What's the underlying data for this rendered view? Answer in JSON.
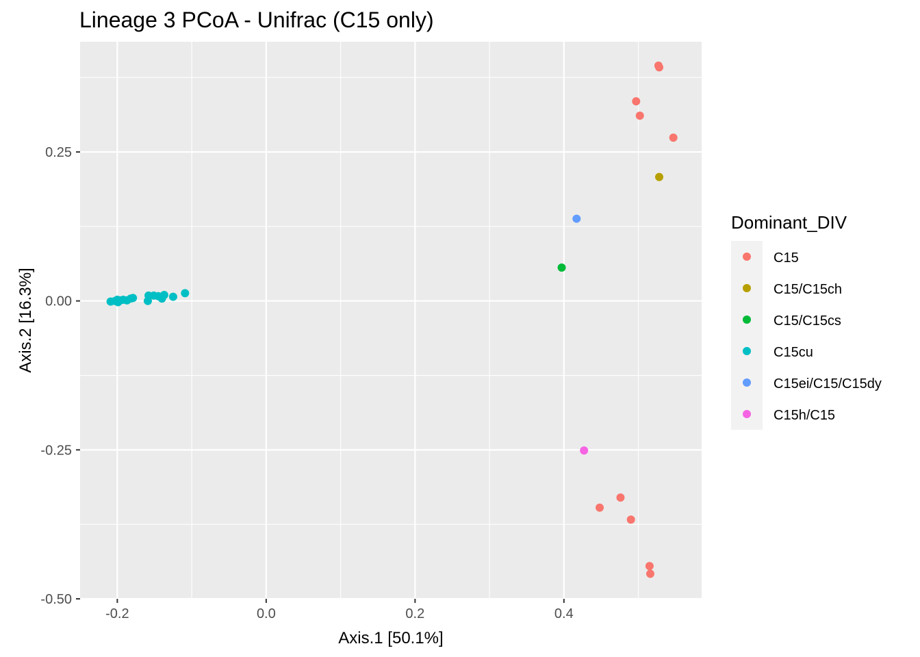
{
  "chart_data": {
    "type": "scatter",
    "title": "Lineage 3 PCoA - Unifrac (C15 only)",
    "xlabel": "Axis.1   [50.1%]",
    "ylabel": "Axis.2   [16.3%]",
    "xlim": [
      -0.25,
      0.585
    ],
    "ylim": [
      -0.5,
      0.435
    ],
    "x_ticks": [
      -0.2,
      0.0,
      0.2,
      0.4
    ],
    "x_tick_labels": [
      "-0.2",
      "0.0",
      "0.2",
      "0.4"
    ],
    "y_ticks": [
      -0.5,
      -0.25,
      0.0,
      0.25
    ],
    "y_tick_labels": [
      "-0.50",
      "-0.25",
      "0.00",
      "0.25"
    ],
    "grid": true,
    "legend_title": "Dominant_DIV",
    "legend_position": "right",
    "series": [
      {
        "name": "C15",
        "color": "#F8766D",
        "points": [
          [
            0.527,
            0.395
          ],
          [
            0.528,
            0.392
          ],
          [
            0.497,
            0.335
          ],
          [
            0.502,
            0.311
          ],
          [
            0.547,
            0.274
          ],
          [
            0.476,
            -0.33
          ],
          [
            0.448,
            -0.347
          ],
          [
            0.49,
            -0.367
          ],
          [
            0.515,
            -0.445
          ],
          [
            0.516,
            -0.458
          ]
        ]
      },
      {
        "name": "C15/C15ch",
        "color": "#B79F00",
        "points": [
          [
            0.528,
            0.208
          ]
        ]
      },
      {
        "name": "C15/C15cs",
        "color": "#00BA38",
        "points": [
          [
            0.397,
            0.056
          ]
        ]
      },
      {
        "name": "C15cu",
        "color": "#00BFC4",
        "points": [
          [
            -0.209,
            -0.001
          ],
          [
            -0.203,
            0.0
          ],
          [
            -0.2,
            0.002
          ],
          [
            -0.199,
            -0.002
          ],
          [
            -0.196,
            0.001
          ],
          [
            -0.192,
            0.002
          ],
          [
            -0.187,
            0.001
          ],
          [
            -0.182,
            0.004
          ],
          [
            -0.179,
            0.005
          ],
          [
            -0.158,
            0.009
          ],
          [
            -0.159,
            0.0
          ],
          [
            -0.151,
            0.009
          ],
          [
            -0.145,
            0.008
          ],
          [
            -0.14,
            0.004
          ],
          [
            -0.137,
            0.01
          ],
          [
            -0.125,
            0.007
          ],
          [
            -0.109,
            0.013
          ]
        ]
      },
      {
        "name": "C15ei/C15/C15dy",
        "color": "#619CFF",
        "points": [
          [
            0.417,
            0.138
          ]
        ]
      },
      {
        "name": "C15h/C15",
        "color": "#F564E3",
        "points": [
          [
            0.427,
            -0.251
          ]
        ]
      }
    ]
  }
}
